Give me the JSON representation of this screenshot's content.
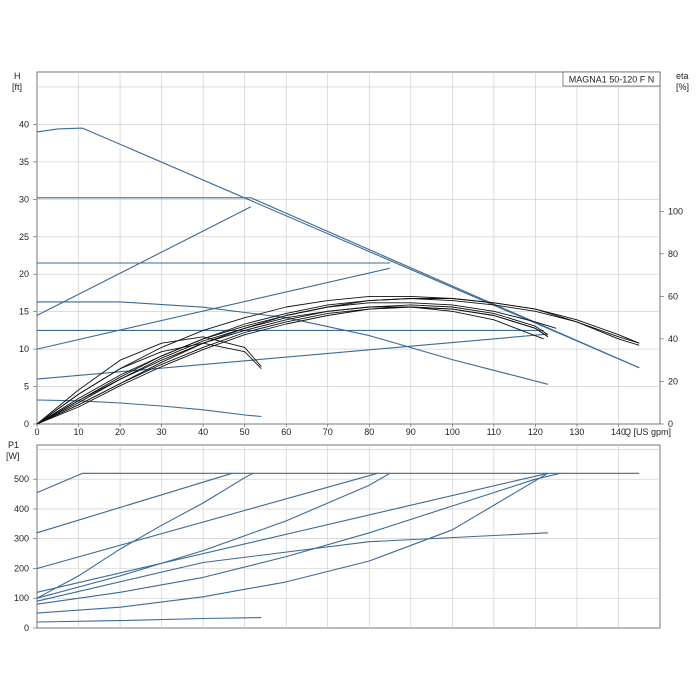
{
  "chart_data": [
    {
      "type": "line",
      "title": "MAGNA1 50-120 F N",
      "xlabel": "Q [US gpm]",
      "ylabel": "H",
      "ylabel_unit": "[ft]",
      "y2label": "eta",
      "y2label_unit": "[%]",
      "xlim": [
        0,
        150
      ],
      "ylim": [
        0,
        47
      ],
      "y2lim": [
        0,
        100
      ],
      "x_ticks": [
        "0",
        "10",
        "20",
        "30",
        "40",
        "50",
        "60",
        "70",
        "80",
        "90",
        "100",
        "110",
        "120",
        "130",
        "140"
      ],
      "y_ticks": [
        "0",
        "5",
        "10",
        "15",
        "20",
        "25",
        "30",
        "35",
        "40"
      ],
      "y2_ticks": [
        "0",
        "20",
        "40",
        "60",
        "80",
        "100"
      ],
      "grid": true,
      "legend": "none",
      "colors": {
        "curve": "#3b6a96",
        "efficiency": "#111111"
      },
      "series": [
        {
          "x": [
            0,
            5,
            10,
            11,
            145
          ],
          "y": [
            39,
            39.4,
            39.5,
            39.5,
            7.5
          ]
        },
        {
          "x": [
            0,
            10,
            20,
            30,
            40,
            50,
            51.5
          ],
          "y": [
            30.2,
            30.2,
            30.2,
            30.2,
            30.2,
            30.2,
            30.2
          ]
        },
        {
          "x": [
            51.5,
            145
          ],
          "y": [
            30.2,
            7.5
          ]
        },
        {
          "x": [
            0,
            85
          ],
          "y": [
            21.5,
            21.5
          ]
        },
        {
          "x": [
            0,
            122
          ],
          "y": [
            12.5,
            12.5
          ]
        },
        {
          "x": [
            0,
            20,
            40,
            60,
            80,
            100,
            123
          ],
          "y": [
            16.3,
            16.3,
            15.6,
            14.2,
            11.8,
            8.6,
            5.3
          ]
        },
        {
          "x": [
            0,
            10,
            20,
            30,
            40,
            50,
            54
          ],
          "y": [
            3.2,
            3.1,
            2.8,
            2.4,
            1.9,
            1.2,
            1.0
          ]
        },
        {
          "x": [
            0,
            51.5
          ],
          "y": [
            14.5,
            29.0
          ]
        },
        {
          "x": [
            0,
            85
          ],
          "y": [
            10.0,
            20.8
          ]
        },
        {
          "x": [
            0,
            123
          ],
          "y": [
            6.0,
            12.0
          ]
        },
        {
          "x": [
            0,
            10,
            20,
            30,
            40,
            50,
            60,
            70,
            80,
            90,
            100,
            110,
            120,
            130,
            140,
            145
          ],
          "y": [
            0,
            14,
            26,
            36,
            44,
            50,
            55,
            58,
            60,
            60,
            59,
            57,
            54,
            48,
            40,
            37
          ]
        },
        {
          "x": [
            0,
            10,
            20,
            30,
            40,
            50,
            60,
            70,
            80,
            90,
            100,
            110,
            120,
            130,
            140,
            145
          ],
          "y": [
            0,
            11,
            22,
            32,
            40,
            47,
            52,
            56,
            58,
            59,
            58,
            56,
            53,
            48,
            41,
            38
          ]
        },
        {
          "x": [
            0,
            10,
            20,
            30,
            40,
            50,
            60,
            70,
            80,
            90,
            100,
            110,
            120,
            130,
            140,
            145
          ],
          "y": [
            0,
            9,
            19,
            29,
            38,
            45,
            51,
            55,
            58,
            59,
            59,
            57,
            54,
            49,
            42,
            38
          ]
        },
        {
          "x": [
            0,
            10,
            20,
            30,
            40,
            50,
            60,
            70,
            80,
            90,
            100,
            110,
            120,
            125
          ],
          "y": [
            0,
            12,
            23,
            32,
            40,
            46,
            51,
            55,
            57,
            57,
            56,
            53,
            48,
            45
          ]
        },
        {
          "x": [
            0,
            10,
            20,
            30,
            40,
            50,
            60,
            70,
            80,
            90,
            100,
            110,
            120,
            123
          ],
          "y": [
            0,
            10,
            21,
            30,
            38,
            44,
            49,
            53,
            55,
            56,
            55,
            52,
            46,
            42
          ]
        },
        {
          "x": [
            0,
            10,
            20,
            30,
            40,
            50,
            60,
            70,
            80,
            90,
            100,
            110,
            120,
            123
          ],
          "y": [
            0,
            8,
            18,
            27,
            35,
            42,
            47,
            51,
            54,
            55,
            54,
            51,
            45,
            41
          ]
        },
        {
          "x": [
            0,
            10,
            20,
            30,
            40,
            50,
            60,
            70,
            80,
            90,
            100,
            110,
            120,
            123
          ],
          "y": [
            0,
            9,
            19,
            28,
            36,
            43,
            48,
            52,
            54,
            55,
            54,
            51,
            45,
            41
          ]
        },
        {
          "x": [
            0,
            10,
            20,
            30,
            40,
            50,
            60,
            70,
            80,
            90,
            100,
            110,
            122
          ],
          "y": [
            0,
            11,
            21,
            31,
            39,
            45,
            50,
            53,
            55,
            55,
            53,
            49,
            40
          ]
        },
        {
          "x": [
            0,
            10,
            20,
            30,
            40,
            50,
            54
          ],
          "y": [
            0,
            16,
            30,
            38,
            41,
            36,
            27
          ]
        },
        {
          "x": [
            0,
            10,
            20,
            30,
            40,
            50,
            54
          ],
          "y": [
            0,
            14,
            26,
            34,
            38,
            34,
            26
          ]
        }
      ]
    },
    {
      "type": "line",
      "ylabel": "P1",
      "ylabel_unit": "[W]",
      "xlim": [
        0,
        150
      ],
      "ylim": [
        0,
        615
      ],
      "y_ticks": [
        "0",
        "100",
        "200",
        "300",
        "400",
        "500"
      ],
      "grid": true,
      "legend": "none",
      "colors": {
        "curve": "#3b6a96"
      },
      "series": [
        {
          "x": [
            0,
            11,
            145
          ],
          "y": [
            455,
            520,
            520
          ]
        },
        {
          "x": [
            0,
            47
          ],
          "y": [
            320,
            520
          ]
        },
        {
          "x": [
            0,
            10,
            20,
            30,
            40,
            50,
            52
          ],
          "y": [
            100,
            175,
            265,
            345,
            420,
            505,
            520
          ]
        },
        {
          "x": [
            0,
            82
          ],
          "y": [
            200,
            520
          ]
        },
        {
          "x": [
            0,
            20,
            40,
            60,
            80,
            85
          ],
          "y": [
            100,
            175,
            260,
            360,
            480,
            520
          ]
        },
        {
          "x": [
            0,
            123
          ],
          "y": [
            120,
            520
          ]
        },
        {
          "x": [
            0,
            20,
            40,
            60,
            80,
            100,
            120,
            126
          ],
          "y": [
            80,
            120,
            170,
            240,
            320,
            410,
            500,
            520
          ]
        },
        {
          "x": [
            0,
            40,
            80,
            123
          ],
          "y": [
            90,
            220,
            290,
            320
          ]
        },
        {
          "x": [
            0,
            20,
            40,
            60,
            80,
            100,
            123
          ],
          "y": [
            50,
            70,
            105,
            155,
            225,
            330,
            520
          ]
        },
        {
          "x": [
            0,
            20,
            40,
            54
          ],
          "y": [
            20,
            25,
            32,
            35
          ]
        }
      ]
    }
  ]
}
